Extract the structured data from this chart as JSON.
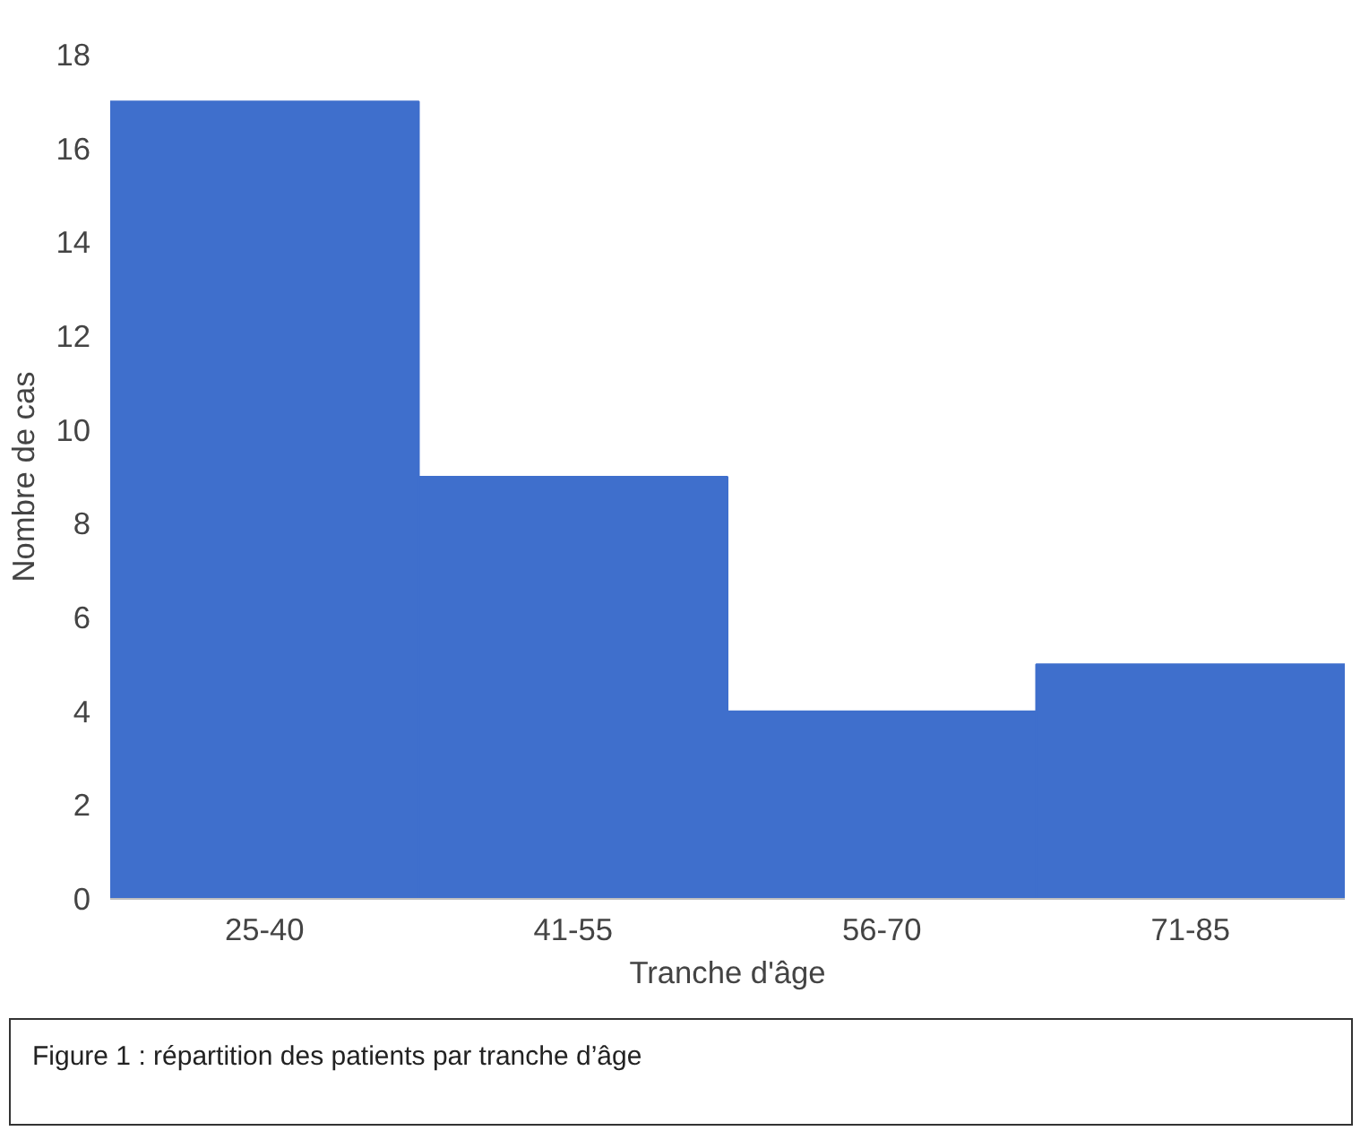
{
  "chart_data": {
    "type": "bar",
    "categories": [
      "25-40",
      "41-55",
      "56-70",
      "71-85"
    ],
    "values": [
      17,
      9,
      4,
      5
    ],
    "color": "#3f6fcc",
    "xlabel": "Tranche d'âge",
    "ylabel": "Nombre de cas",
    "ylim": [
      0,
      18
    ],
    "yticks": [
      0,
      2,
      4,
      6,
      8,
      10,
      12,
      14,
      16,
      18
    ],
    "grid": false,
    "annotations": [
      "Figure 1 : répartition des patients par tranche d’âge"
    ]
  }
}
